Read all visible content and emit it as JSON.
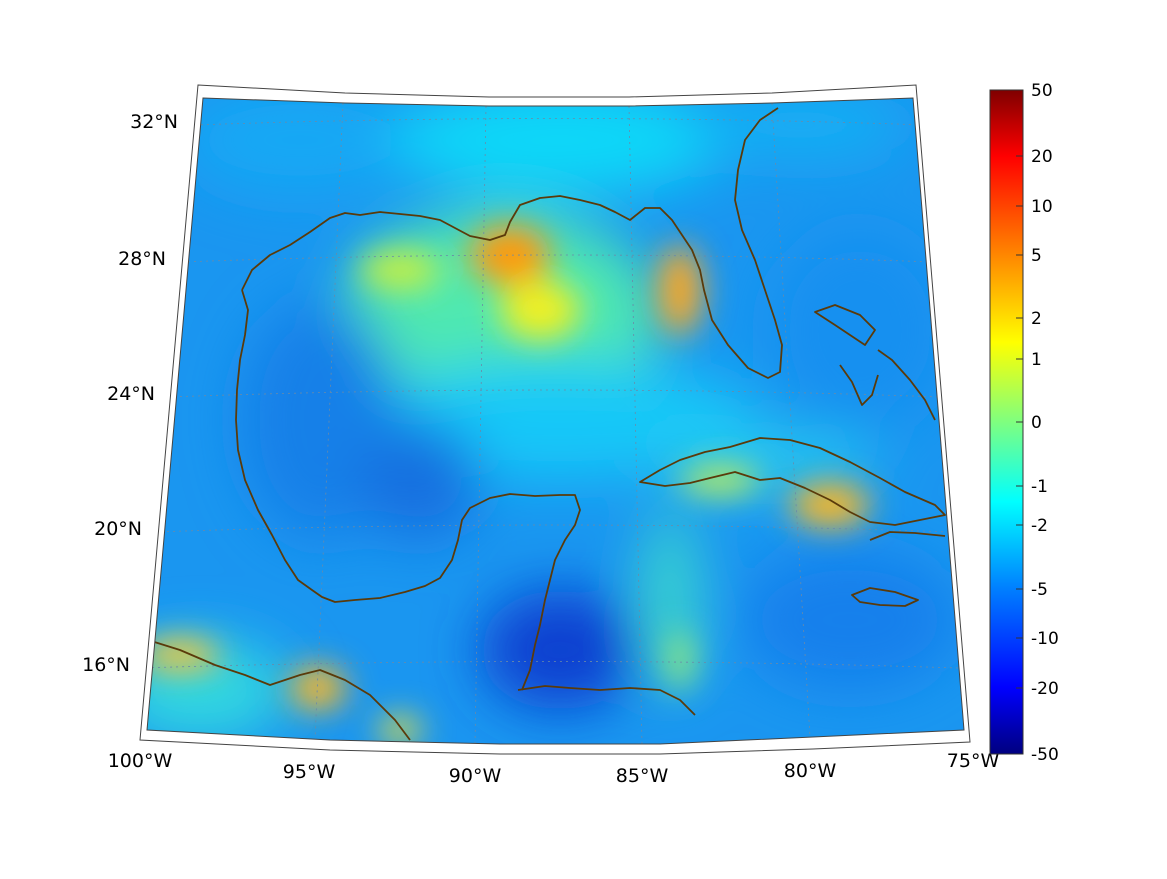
{
  "map": {
    "lat_labels": [
      {
        "lat": 32,
        "label": "32°N"
      },
      {
        "lat": 28,
        "label": "28°N"
      },
      {
        "lat": 24,
        "label": "24°N"
      },
      {
        "lat": 20,
        "label": "20°N"
      },
      {
        "lat": 16,
        "label": "16°N"
      }
    ],
    "lon_labels": [
      {
        "lon": -100,
        "label": "100°W"
      },
      {
        "lon": -95,
        "label": "95°W"
      },
      {
        "lon": -90,
        "label": "90°W"
      },
      {
        "lon": -85,
        "label": "85°W"
      },
      {
        "lon": -80,
        "label": "80°W"
      },
      {
        "lon": -75,
        "label": "75°W"
      }
    ],
    "extent": {
      "lon": [
        -100,
        -75
      ],
      "lat": [
        14,
        33
      ]
    },
    "coastline_color": "#5a3a0a",
    "gridline_style": "dotted"
  },
  "colorbar": {
    "labels": [
      "50",
      "20",
      "10",
      "5",
      "2",
      "1",
      "0",
      "-1",
      "-2",
      "-5",
      "-10",
      "-20",
      "-50"
    ],
    "colors": [
      "#800000",
      "#ff0000",
      "#ff8000",
      "#ffff00",
      "#80ff80",
      "#00ffff",
      "#0080ff",
      "#0000ff",
      "#000080"
    ]
  }
}
